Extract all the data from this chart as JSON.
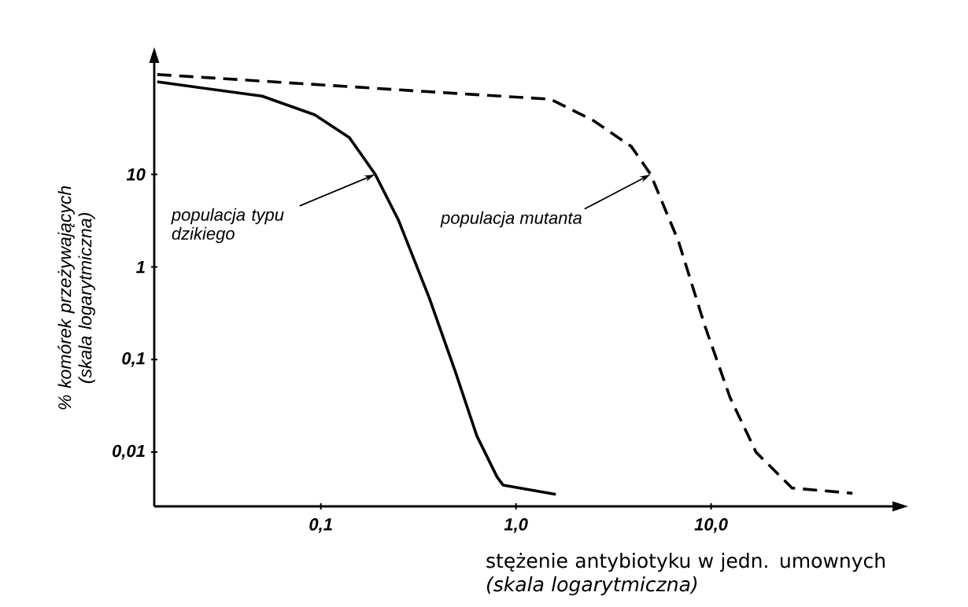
{
  "chart_data": {
    "type": "line",
    "xlabel": "stężenie antybiotyku w jedn. umownych *(skala logarytmiczna)*",
    "ylabel": "% komórek przeżywających (skala logarytmiczna)",
    "log": "xy",
    "xlim": [
      0.014,
      85
    ],
    "ylim": [
      0.0026,
      160
    ],
    "xticks": [
      {
        "value": 0.1,
        "label": "0,1"
      },
      {
        "value": 1,
        "label": "1,0"
      },
      {
        "value": 10,
        "label": "10,0"
      }
    ],
    "yticks": [
      {
        "value": 0.01,
        "label": "0,01"
      },
      {
        "value": 0.1,
        "label": "0,1"
      },
      1,
      10
    ],
    "series": [
      {
        "color": "#000000",
        "line_style": "solid",
        "x": [
          0.0145,
          0.05,
          0.093,
          0.14,
          0.19,
          0.25,
          0.36,
          0.49,
          0.63,
          0.8,
          0.86,
          1.6
        ],
        "values": [
          100,
          70,
          44,
          25,
          10,
          3.2,
          0.46,
          0.073,
          0.015,
          0.0054,
          0.0044,
          0.0035
        ]
      },
      {
        "color": "#000000",
        "line_style": "dashed",
        "x": [
          0.0145,
          0.6,
          1.5,
          2.5,
          3.9,
          4.9,
          6.8,
          9.3,
          12.5,
          17,
          26,
          53
        ],
        "values": [
          120,
          73,
          65,
          38,
          20,
          10,
          1.9,
          0.23,
          0.039,
          0.01,
          0.0041,
          0.0036
        ]
      }
    ],
    "annotations": [
      {
        "text": "populacja typu dzikiego",
        "x": 0.19,
        "y": 10
      },
      {
        "text": "populacja mutanta",
        "x": 4.9,
        "y": 10
      }
    ]
  }
}
